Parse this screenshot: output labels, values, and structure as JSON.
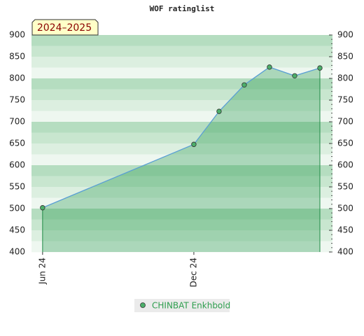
{
  "chart_data": {
    "type": "line",
    "title": "WOF ratinglist",
    "period": "2024–2025",
    "x": [
      0,
      6,
      7,
      8,
      9,
      10,
      11
    ],
    "xlim": [
      -0.44,
      11.5
    ],
    "xticks": [
      {
        "value": 0,
        "label": "Jun 24"
      },
      {
        "value": 6,
        "label": "Dec 24"
      }
    ],
    "ylim": [
      400,
      900
    ],
    "yticks": [
      400,
      450,
      500,
      550,
      600,
      650,
      700,
      750,
      800,
      850,
      900
    ],
    "series": [
      {
        "name": "CHINBAT Enkhbold",
        "color": "#5a9fd4",
        "marker_color": "#4caf6a",
        "values": [
          502,
          648,
          724,
          785,
          826,
          806,
          824
        ]
      }
    ]
  }
}
